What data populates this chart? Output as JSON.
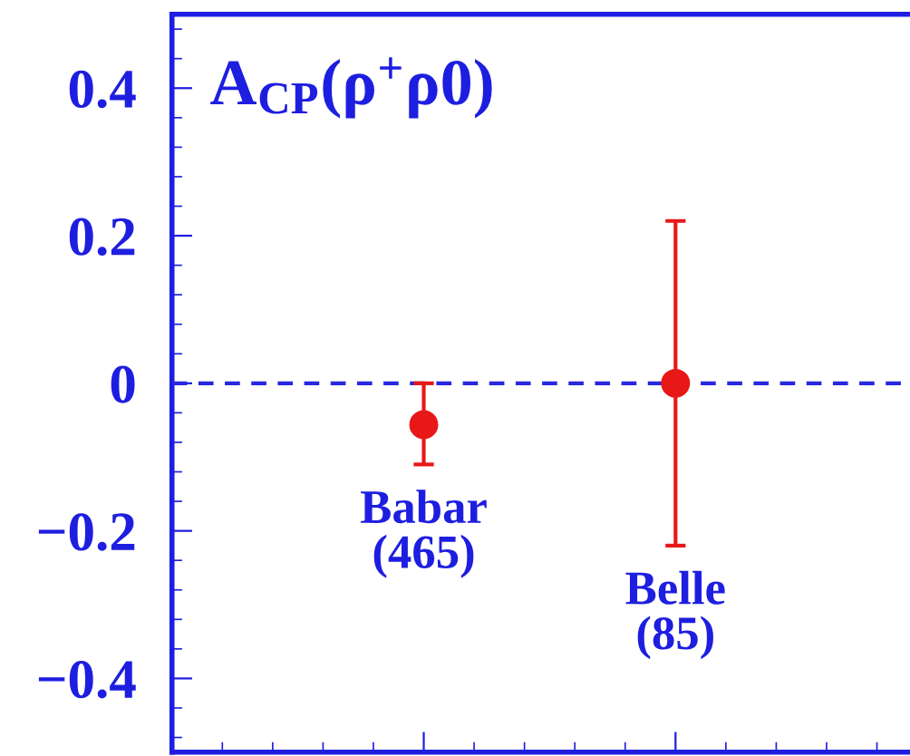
{
  "chart_data": {
    "type": "scatter",
    "title": "A$_{CP}$(ρ$^{+}$ρ0)",
    "categories": [
      null,
      null,
      null,
      null
    ],
    "series": [
      {
        "color": "#e81818",
        "values": [
          null,
          -0.056,
          null,
          null
        ],
        "errors": [
          null,
          [
            -0.11,
            0.0
          ],
          null,
          null
        ]
      },
      {
        "color": "#e81818",
        "values": [
          null,
          null,
          0.0,
          null
        ],
        "errors": [
          null,
          null,
          [
            -0.22,
            0.22
          ],
          null
        ]
      }
    ],
    "annotations": [
      "Babar\n(465)",
      "Belle\n(85)"
    ],
    "ylim": [
      -0.5,
      0.5
    ],
    "yticks": [
      0.4,
      0.2,
      0,
      {
        "value": -0.2,
        "label": "−0.2"
      },
      {
        "value": -0.4,
        "label": "−0.4"
      }
    ],
    "ref_lines": [
      {
        "axis": "y",
        "value": 0,
        "color": "#2828e0",
        "line_style": "dashed"
      }
    ],
    "marker": "circle",
    "grid": false,
    "legend": false,
    "tick_labels": "y"
  }
}
